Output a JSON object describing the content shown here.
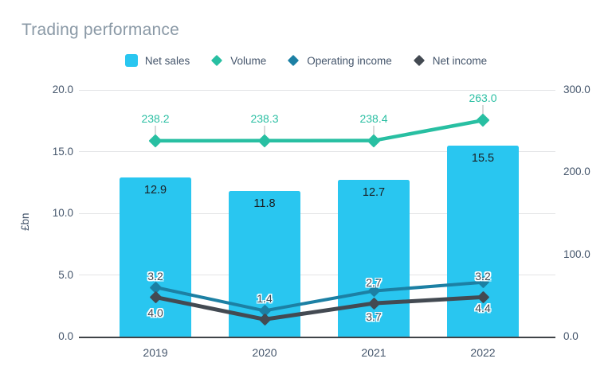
{
  "chart_data": {
    "type": "combo",
    "title": "Trading performance",
    "categories": [
      "2019",
      "2020",
      "2021",
      "2022"
    ],
    "left_axis": {
      "title": "£bn",
      "min": 0,
      "max": 20,
      "ticks": [
        "0.0",
        "5.0",
        "10.0",
        "15.0",
        "20.0"
      ],
      "tick_values": [
        0,
        5,
        10,
        15,
        20
      ]
    },
    "right_axis": {
      "min": 0,
      "max": 300,
      "ticks": [
        "0.0",
        "100.0",
        "200.0",
        "300.0"
      ],
      "tick_values": [
        0,
        100,
        200,
        300
      ]
    },
    "grid": true,
    "legend_position": "top",
    "series": [
      {
        "name": "Net sales",
        "type": "bar",
        "axis": "left",
        "color": "#29C6F0",
        "label_color": "#1B1F23",
        "values": [
          12.9,
          11.8,
          12.7,
          15.5
        ],
        "labels": [
          "12.9",
          "11.8",
          "12.7",
          "15.5"
        ]
      },
      {
        "name": "Volume",
        "type": "line",
        "axis": "right",
        "color": "#28BFA2",
        "label_color": "#2BBFA3",
        "values": [
          238.2,
          238.3,
          238.4,
          263.0
        ],
        "labels": [
          "238.2",
          "238.3",
          "238.4",
          "263.0"
        ]
      },
      {
        "name": "Operating income",
        "type": "line",
        "axis": "left",
        "color": "#1C80A4",
        "label_color": "#414B55",
        "values": [
          4.0,
          2.1,
          3.7,
          4.4
        ],
        "labels": [
          "4.0",
          null,
          "3.7",
          "4.4"
        ]
      },
      {
        "name": "Net income",
        "type": "line",
        "axis": "left",
        "color": "#434A52",
        "label_color": "#414B55",
        "values": [
          3.2,
          1.4,
          2.7,
          3.2
        ],
        "labels": [
          "3.2",
          "1.4",
          "2.7",
          "3.2"
        ]
      }
    ]
  }
}
